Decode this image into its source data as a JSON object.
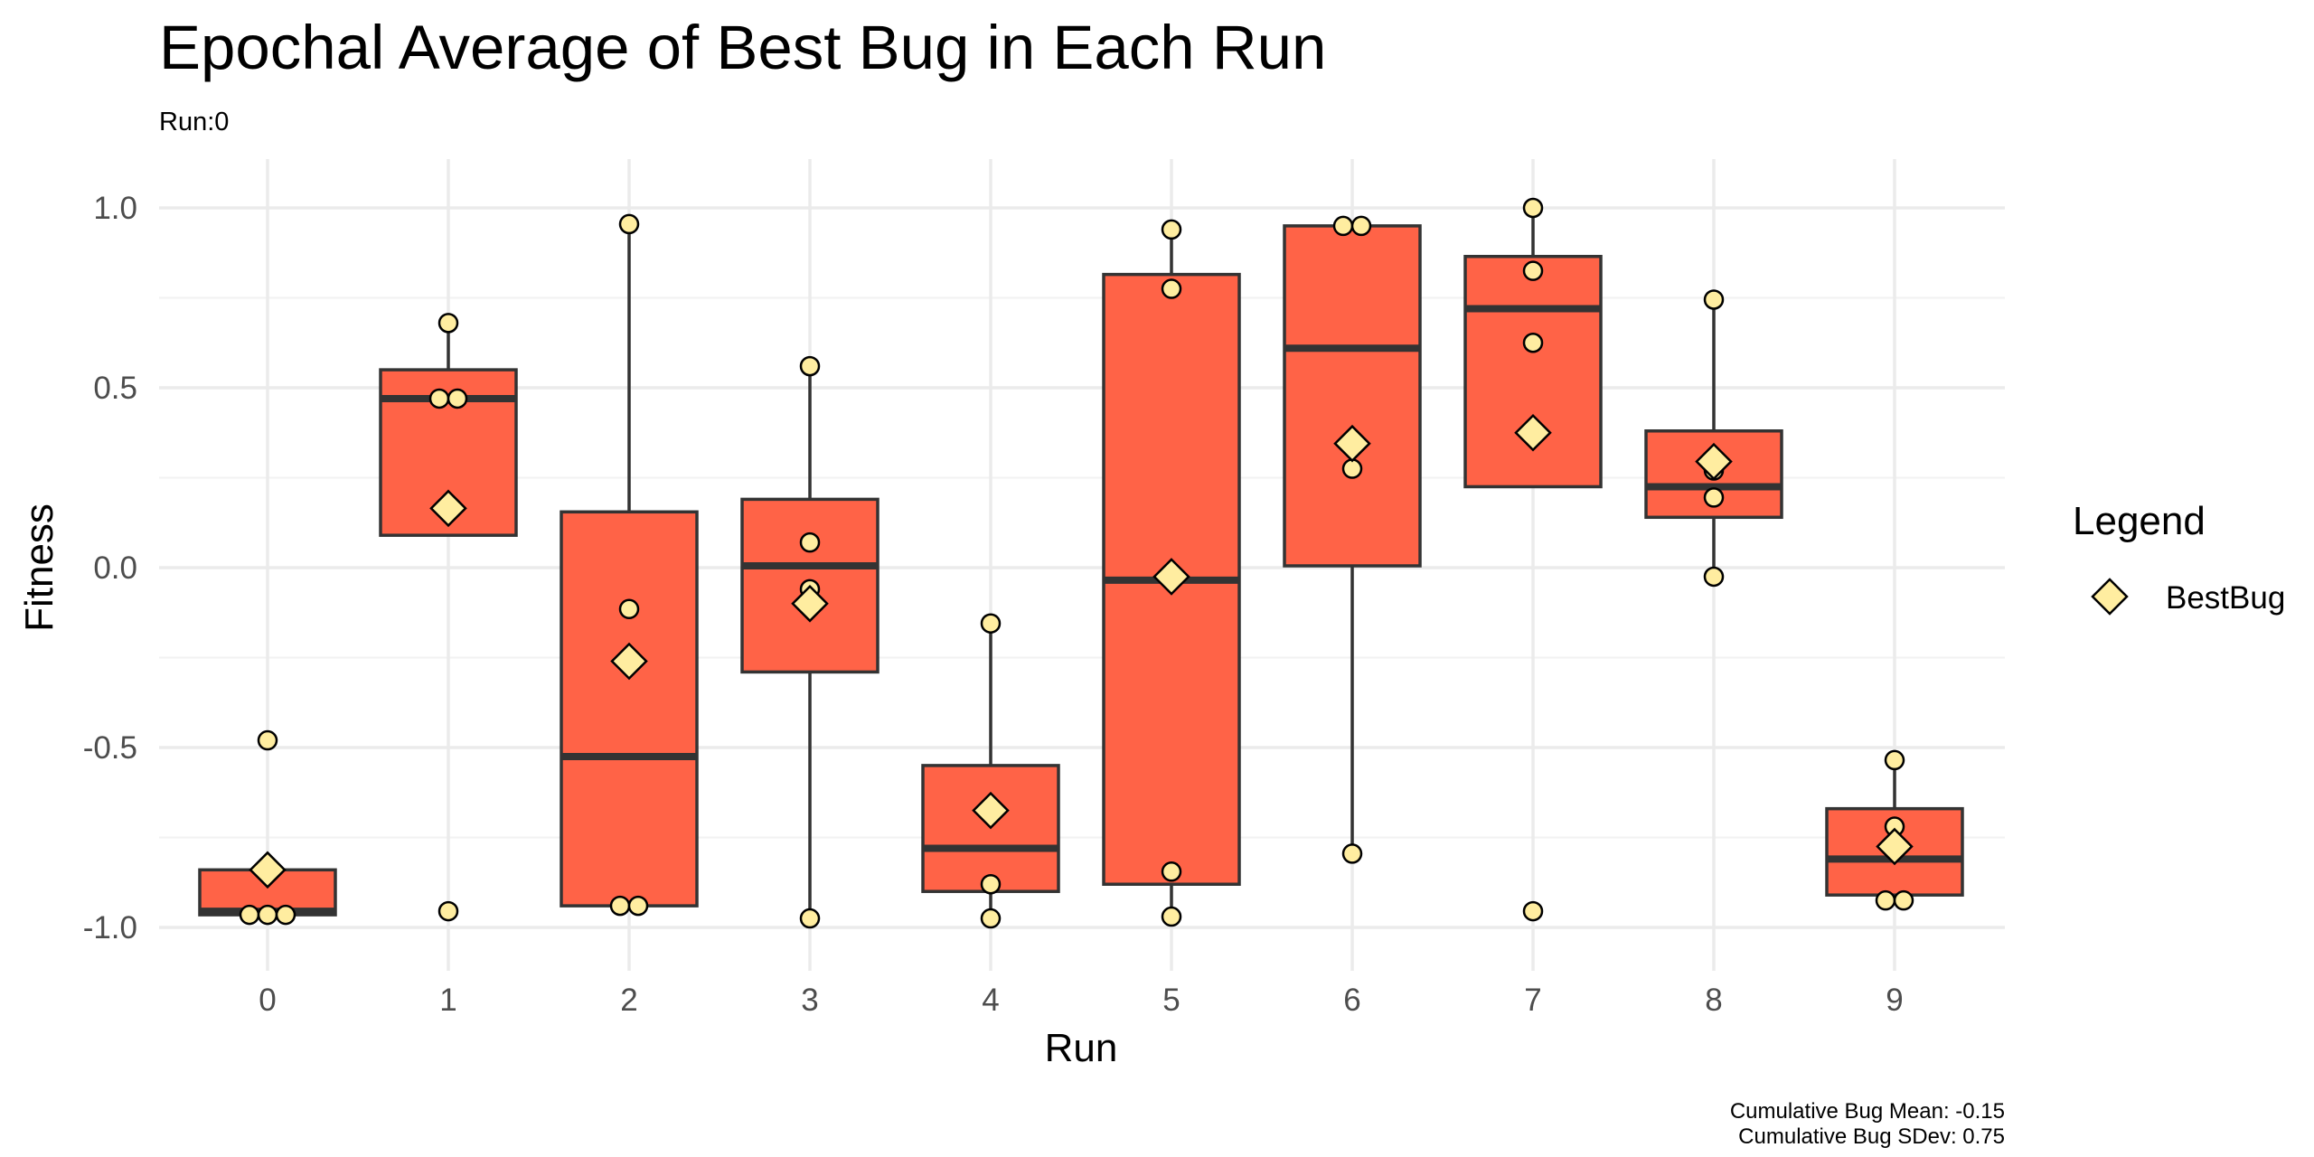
{
  "chart_data": {
    "type": "box",
    "title": "Epochal Average of Best Bug in Each Run",
    "subtitle": "Run:0",
    "xlabel": "Run",
    "ylabel": "Fitness",
    "categories": [
      "0",
      "1",
      "2",
      "3",
      "4",
      "5",
      "6",
      "7",
      "8",
      "9"
    ],
    "ylim": [
      -1.1,
      1.1
    ],
    "yticks": [
      -1.0,
      -0.5,
      0.0,
      0.5,
      1.0
    ],
    "ytick_labels": [
      "-1.0",
      "-0.5",
      "0.0",
      "0.5",
      "1.0"
    ],
    "grid": true,
    "box_fill": "#FF6347",
    "box_stroke": "#333333",
    "point_fill": "#FFEDA0",
    "boxes": [
      {
        "run": "0",
        "q1": -0.965,
        "median": -0.955,
        "q3": -0.84,
        "whisker_low": -0.97,
        "whisker_high": -0.84
      },
      {
        "run": "1",
        "q1": 0.09,
        "median": 0.47,
        "q3": 0.55,
        "whisker_low": 0.09,
        "whisker_high": 0.68
      },
      {
        "run": "2",
        "q1": -0.94,
        "median": -0.525,
        "q3": 0.155,
        "whisker_low": -0.95,
        "whisker_high": 0.955
      },
      {
        "run": "3",
        "q1": -0.29,
        "median": 0.005,
        "q3": 0.19,
        "whisker_low": -0.98,
        "whisker_high": 0.56
      },
      {
        "run": "4",
        "q1": -0.9,
        "median": -0.78,
        "q3": -0.55,
        "whisker_low": -0.98,
        "whisker_high": -0.155
      },
      {
        "run": "5",
        "q1": -0.88,
        "median": -0.035,
        "q3": 0.815,
        "whisker_low": -0.97,
        "whisker_high": 0.94
      },
      {
        "run": "6",
        "q1": 0.005,
        "median": 0.61,
        "q3": 0.95,
        "whisker_low": -0.795,
        "whisker_high": 0.95
      },
      {
        "run": "7",
        "q1": 0.225,
        "median": 0.72,
        "q3": 0.865,
        "whisker_low": 0.225,
        "whisker_high": 1.0
      },
      {
        "run": "8",
        "q1": 0.14,
        "median": 0.225,
        "q3": 0.38,
        "whisker_low": -0.025,
        "whisker_high": 0.745
      },
      {
        "run": "9",
        "q1": -0.91,
        "median": -0.81,
        "q3": -0.67,
        "whisker_low": -0.925,
        "whisker_high": -0.535
      }
    ],
    "points": [
      {
        "run": "0",
        "values": [
          -0.48,
          -0.965,
          -0.965,
          -0.965
        ]
      },
      {
        "run": "1",
        "values": [
          0.68,
          0.47,
          0.47,
          -0.955
        ]
      },
      {
        "run": "2",
        "values": [
          0.955,
          -0.115,
          -0.94,
          -0.94
        ]
      },
      {
        "run": "3",
        "values": [
          0.56,
          0.07,
          -0.06,
          -0.975
        ]
      },
      {
        "run": "4",
        "values": [
          -0.155,
          -0.88,
          -0.975
        ]
      },
      {
        "run": "5",
        "values": [
          0.94,
          0.775,
          -0.845,
          -0.97
        ]
      },
      {
        "run": "6",
        "values": [
          0.95,
          0.95,
          0.275,
          -0.795
        ]
      },
      {
        "run": "7",
        "values": [
          1.0,
          0.825,
          0.625,
          -0.955
        ]
      },
      {
        "run": "8",
        "values": [
          0.745,
          0.27,
          0.195,
          -0.025
        ]
      },
      {
        "run": "9",
        "values": [
          -0.535,
          -0.72,
          -0.925,
          -0.925
        ]
      }
    ],
    "best_bug": {
      "name": "BestBug",
      "values": [
        -0.84,
        0.165,
        -0.26,
        -0.1,
        -0.675,
        -0.025,
        0.345,
        0.375,
        0.295,
        -0.775
      ]
    },
    "legend": {
      "title": "Legend",
      "position": "right",
      "entries": [
        "BestBug"
      ]
    },
    "caption": [
      "Cumulative Bug Mean: -0.15",
      "Cumulative Bug SDev: 0.75"
    ]
  }
}
